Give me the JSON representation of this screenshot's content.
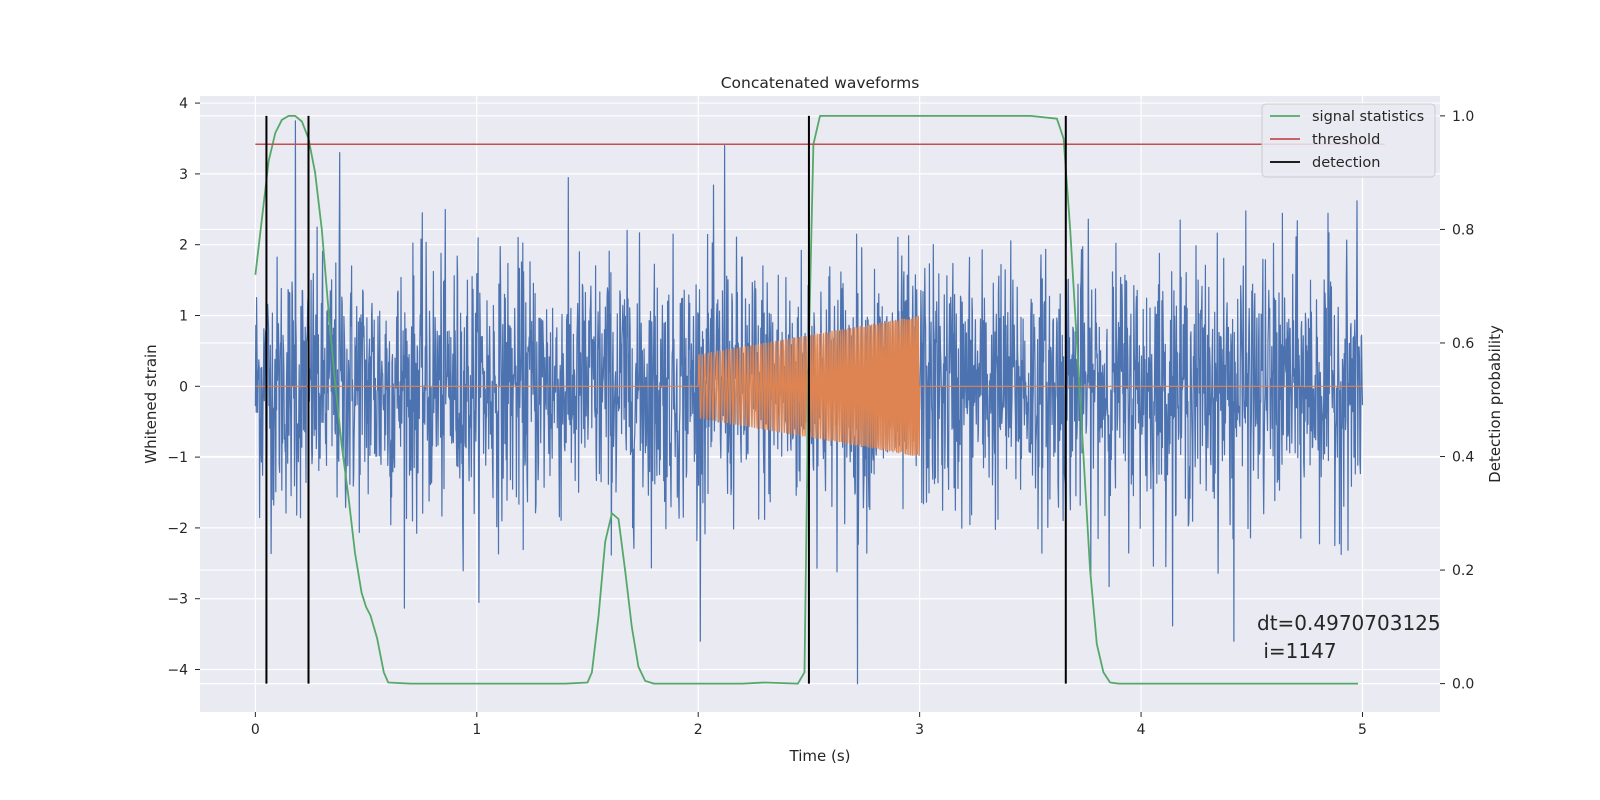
{
  "chart_data": {
    "type": "line",
    "title": "Concatenated waveforms",
    "xlabel": "Time (s)",
    "ylabel": "Whitened strain",
    "y2label": "Detection probability",
    "xlim": [
      -0.25,
      5.35
    ],
    "ylim": [
      -4.6,
      4.1
    ],
    "y2lim": [
      -0.05,
      1.035
    ],
    "x_ticks": [
      0,
      1,
      2,
      3,
      4,
      5
    ],
    "y_ticks": [
      -4,
      -3,
      -2,
      -1,
      0,
      1,
      2,
      3,
      4
    ],
    "y2_ticks": [
      0.0,
      0.2,
      0.4,
      0.6,
      0.8,
      1.0
    ],
    "x_tick_labels": [
      "0",
      "1",
      "2",
      "3",
      "4",
      "5"
    ],
    "y_tick_labels": [
      "−4",
      "−3",
      "−2",
      "−1",
      "0",
      "1",
      "2",
      "3",
      "4"
    ],
    "y2_tick_labels": [
      "0.0",
      "0.2",
      "0.4",
      "0.6",
      "0.8",
      "1.0"
    ],
    "grid": true,
    "legend_position": "upper right",
    "series": [
      {
        "name": "",
        "kind": "noise",
        "axis": "left",
        "color": "#4c72b0",
        "x_range": [
          0,
          5
        ],
        "typical_amplitude": 1.2,
        "extreme_peaks": [
          {
            "x": 0.18,
            "y": 3.75
          },
          {
            "x": 0.38,
            "y": 3.3
          },
          {
            "x": 2.12,
            "y": 3.4
          },
          {
            "x": 2.72,
            "y": -4.2
          },
          {
            "x": 4.42,
            "y": -3.6
          }
        ]
      },
      {
        "name": "",
        "kind": "chirp",
        "axis": "left",
        "color": "#dd8452",
        "x_range": [
          0,
          5
        ],
        "active_range": [
          2.0,
          3.0
        ],
        "start_amplitude": 0.45,
        "end_amplitude": 1.0
      },
      {
        "name": "signal statistics",
        "axis": "right",
        "color": "#55a868",
        "points": [
          [
            0.0,
            0.72
          ],
          [
            0.03,
            0.82
          ],
          [
            0.06,
            0.92
          ],
          [
            0.09,
            0.97
          ],
          [
            0.12,
            0.993
          ],
          [
            0.15,
            1.0
          ],
          [
            0.18,
            1.0
          ],
          [
            0.21,
            0.99
          ],
          [
            0.24,
            0.96
          ],
          [
            0.27,
            0.9
          ],
          [
            0.3,
            0.8
          ],
          [
            0.33,
            0.66
          ],
          [
            0.36,
            0.53
          ],
          [
            0.39,
            0.42
          ],
          [
            0.42,
            0.33
          ],
          [
            0.45,
            0.23
          ],
          [
            0.48,
            0.16
          ],
          [
            0.5,
            0.135
          ],
          [
            0.52,
            0.12
          ],
          [
            0.55,
            0.08
          ],
          [
            0.58,
            0.02
          ],
          [
            0.6,
            0.002
          ],
          [
            0.7,
            0.0
          ],
          [
            1.0,
            0.0
          ],
          [
            1.4,
            0.0
          ],
          [
            1.5,
            0.002
          ],
          [
            1.52,
            0.02
          ],
          [
            1.55,
            0.12
          ],
          [
            1.58,
            0.25
          ],
          [
            1.61,
            0.3
          ],
          [
            1.64,
            0.29
          ],
          [
            1.67,
            0.2
          ],
          [
            1.7,
            0.1
          ],
          [
            1.73,
            0.03
          ],
          [
            1.76,
            0.005
          ],
          [
            1.8,
            0.0
          ],
          [
            2.2,
            0.0
          ],
          [
            2.3,
            0.002
          ],
          [
            2.45,
            0.0
          ],
          [
            2.48,
            0.02
          ],
          [
            2.5,
            0.6
          ],
          [
            2.52,
            0.95
          ],
          [
            2.55,
            1.0
          ],
          [
            3.0,
            1.0
          ],
          [
            3.5,
            1.0
          ],
          [
            3.62,
            0.995
          ],
          [
            3.65,
            0.96
          ],
          [
            3.68,
            0.8
          ],
          [
            3.71,
            0.6
          ],
          [
            3.74,
            0.4
          ],
          [
            3.77,
            0.2
          ],
          [
            3.8,
            0.07
          ],
          [
            3.83,
            0.02
          ],
          [
            3.86,
            0.002
          ],
          [
            3.9,
            0.0
          ],
          [
            4.5,
            0.0
          ],
          [
            4.98,
            0.0
          ]
        ]
      },
      {
        "name": "threshold",
        "axis": "right",
        "color": "#c44e52",
        "x": [
          0.0,
          5.1
        ],
        "y": [
          0.95,
          0.95
        ]
      }
    ],
    "detections": {
      "name": "detection",
      "color": "#000000",
      "x": [
        0.05,
        0.24,
        2.5,
        3.66
      ],
      "y_range": [
        0.0,
        1.0
      ]
    },
    "annotation": "dt=0.4970703125\n i=1147"
  }
}
